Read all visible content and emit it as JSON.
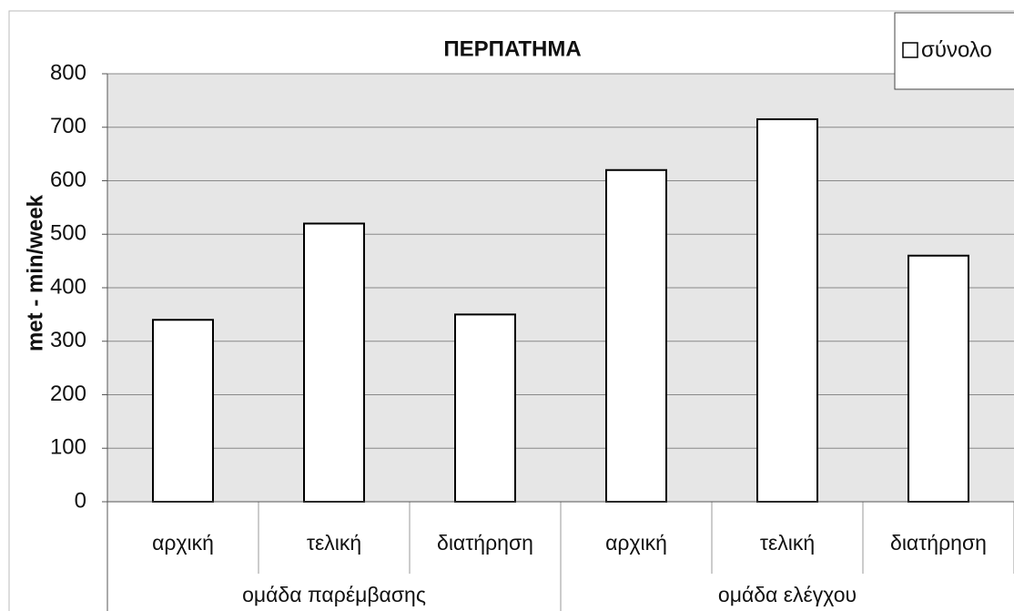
{
  "chart_data": {
    "type": "bar",
    "title": "ΠΕΡΠΑΤΗΜΑ",
    "y_label": "met - min/week",
    "categories": [
      "αρχική",
      "τελική",
      "διατήρηση",
      "αρχική",
      "τελική",
      "διατήρηση"
    ],
    "groups": [
      "ομάδα παρέμβασης",
      "ομάδα ελέγχου"
    ],
    "series": [
      {
        "name": "σύνολο",
        "color": "#ffffff",
        "values": [
          340,
          520,
          350,
          620,
          715,
          460
        ]
      }
    ],
    "ylim": [
      0,
      800
    ],
    "yticks": [
      0,
      100,
      200,
      300,
      400,
      500,
      600,
      700,
      800
    ],
    "grid": true,
    "legend": "top-right"
  }
}
